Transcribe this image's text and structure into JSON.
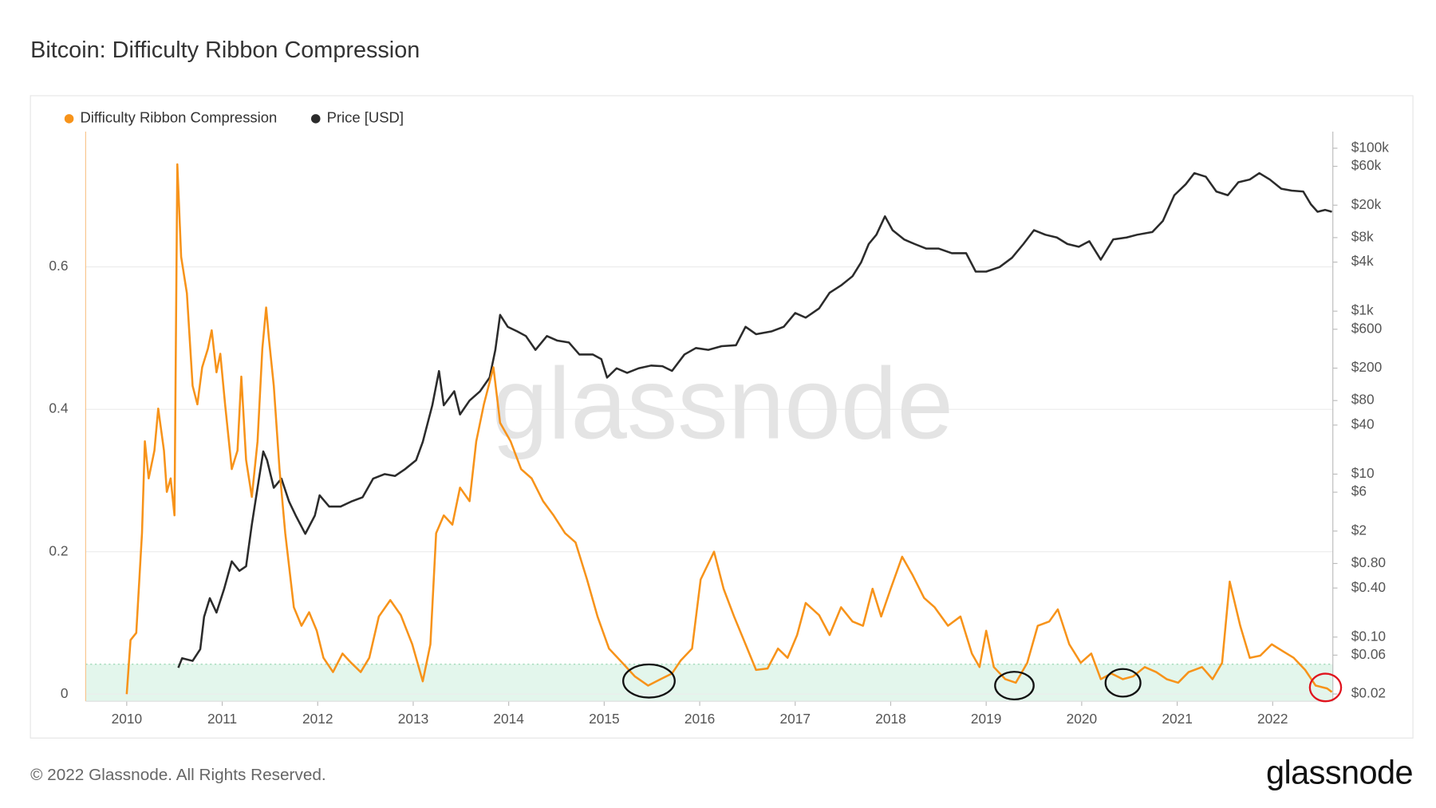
{
  "chart_data": {
    "type": "line",
    "title": "Bitcoin: Difficulty Ribbon Compression",
    "watermark": "glassnode",
    "xlim": [
      2009.57,
      2022.63
    ],
    "xticks": [
      2010,
      2011,
      2012,
      2013,
      2014,
      2015,
      2016,
      2017,
      2018,
      2019,
      2020,
      2021,
      2022
    ],
    "ylim": [
      -0.01,
      0.79
    ],
    "yticks": [
      0,
      0.2,
      0.4,
      0.6
    ],
    "y2lim": [
      0.0163,
      160000
    ],
    "y2log": true,
    "y2ticks": [
      {
        "value": 100000,
        "label": "$100k"
      },
      {
        "value": 60000,
        "label": "$60k"
      },
      {
        "value": 20000,
        "label": "$20k"
      },
      {
        "value": 8000,
        "label": "$8k"
      },
      {
        "value": 4000,
        "label": "$4k"
      },
      {
        "value": 1000,
        "label": "$1k"
      },
      {
        "value": 600,
        "label": "$600"
      },
      {
        "value": 200,
        "label": "$200"
      },
      {
        "value": 80,
        "label": "$80"
      },
      {
        "value": 40,
        "label": "$40"
      },
      {
        "value": 10,
        "label": "$10"
      },
      {
        "value": 6,
        "label": "$6"
      },
      {
        "value": 2,
        "label": "$2"
      },
      {
        "value": 0.8,
        "label": "$0.80"
      },
      {
        "value": 0.4,
        "label": "$0.40"
      },
      {
        "value": 0.1,
        "label": "$0.10"
      },
      {
        "value": 0.06,
        "label": "$0.06"
      },
      {
        "value": 0.02,
        "label": "$0.02"
      }
    ],
    "grid": true,
    "band": {
      "from": -0.01,
      "to": 0.042,
      "color": "#e3f6ec"
    },
    "legend": "top-left",
    "series": [
      {
        "name": "Difficulty Ribbon Compression",
        "color": "#f7931a",
        "x": [
          2010.0,
          2010.04,
          2010.1,
          2010.16,
          2010.19,
          2010.23,
          2010.29,
          2010.33,
          2010.39,
          2010.42,
          2010.46,
          2010.5,
          2010.53,
          2010.57,
          2010.63,
          2010.69,
          2010.74,
          2010.79,
          2010.85,
          2010.89,
          2010.94,
          2010.98,
          2011.03,
          2011.1,
          2011.16,
          2011.2,
          2011.25,
          2011.31,
          2011.37,
          2011.42,
          2011.46,
          2011.49,
          2011.54,
          2011.6,
          2011.66,
          2011.75,
          2011.83,
          2011.91,
          2011.99,
          2012.06,
          2012.16,
          2012.26,
          2012.35,
          2012.45,
          2012.54,
          2012.64,
          2012.76,
          2012.87,
          2012.99,
          2013.1,
          2013.18,
          2013.24,
          2013.32,
          2013.41,
          2013.49,
          2013.59,
          2013.66,
          2013.74,
          2013.84,
          2013.91,
          2014.02,
          2014.13,
          2014.24,
          2014.36,
          2014.47,
          2014.59,
          2014.7,
          2014.82,
          2014.93,
          2015.05,
          2015.19,
          2015.32,
          2015.46,
          2015.59,
          2015.71,
          2015.8,
          2015.92,
          2016.01,
          2016.15,
          2016.25,
          2016.36,
          2016.48,
          2016.59,
          2016.71,
          2016.82,
          2016.92,
          2017.02,
          2017.11,
          2017.25,
          2017.36,
          2017.48,
          2017.6,
          2017.71,
          2017.81,
          2017.9,
          2018.0,
          2018.12,
          2018.23,
          2018.35,
          2018.46,
          2018.6,
          2018.73,
          2018.85,
          2018.93,
          2019.0,
          2019.08,
          2019.2,
          2019.31,
          2019.43,
          2019.54,
          2019.66,
          2019.75,
          2019.87,
          2019.99,
          2020.1,
          2020.2,
          2020.31,
          2020.43,
          2020.54,
          2020.66,
          2020.78,
          2020.89,
          2021.01,
          2021.12,
          2021.26,
          2021.37,
          2021.47,
          2021.55,
          2021.66,
          2021.76,
          2021.87,
          2021.99,
          2022.11,
          2022.22,
          2022.34,
          2022.45,
          2022.57,
          2022.62
        ],
        "values": [
          0,
          0.076,
          0.086,
          0.226,
          0.355,
          0.303,
          0.342,
          0.401,
          0.342,
          0.284,
          0.303,
          0.251,
          0.744,
          0.614,
          0.563,
          0.433,
          0.407,
          0.459,
          0.485,
          0.511,
          0.452,
          0.478,
          0.407,
          0.316,
          0.342,
          0.446,
          0.329,
          0.277,
          0.355,
          0.485,
          0.543,
          0.498,
          0.433,
          0.316,
          0.226,
          0.122,
          0.096,
          0.115,
          0.089,
          0.051,
          0.031,
          0.057,
          0.044,
          0.031,
          0.051,
          0.109,
          0.132,
          0.111,
          0.07,
          0.018,
          0.07,
          0.226,
          0.251,
          0.238,
          0.29,
          0.271,
          0.355,
          0.407,
          0.459,
          0.381,
          0.355,
          0.316,
          0.303,
          0.271,
          0.251,
          0.226,
          0.213,
          0.161,
          0.109,
          0.064,
          0.044,
          0.025,
          0.012,
          0.021,
          0.029,
          0.047,
          0.064,
          0.161,
          0.2,
          0.148,
          0.109,
          0.07,
          0.034,
          0.036,
          0.064,
          0.051,
          0.083,
          0.128,
          0.111,
          0.083,
          0.122,
          0.102,
          0.096,
          0.148,
          0.109,
          0.148,
          0.193,
          0.167,
          0.135,
          0.122,
          0.096,
          0.109,
          0.057,
          0.038,
          0.089,
          0.038,
          0.021,
          0.016,
          0.044,
          0.096,
          0.102,
          0.119,
          0.07,
          0.044,
          0.057,
          0.021,
          0.029,
          0.021,
          0.025,
          0.038,
          0.031,
          0.021,
          0.016,
          0.031,
          0.038,
          0.021,
          0.044,
          0.158,
          0.096,
          0.051,
          0.054,
          0.07,
          0.06,
          0.051,
          0.034,
          0.012,
          0.008,
          0.003
        ]
      },
      {
        "name": "Price [USD]",
        "color": "#2b2b2b",
        "axis": "y2",
        "x": [
          2010.54,
          2010.58,
          2010.69,
          2010.77,
          2010.81,
          2010.87,
          2010.94,
          2011.02,
          2011.1,
          2011.18,
          2011.25,
          2011.31,
          2011.37,
          2011.43,
          2011.47,
          2011.54,
          2011.62,
          2011.7,
          2011.77,
          2011.87,
          2011.97,
          2012.02,
          2012.12,
          2012.24,
          2012.35,
          2012.47,
          2012.58,
          2012.7,
          2012.81,
          2012.91,
          2013.03,
          2013.1,
          2013.2,
          2013.27,
          2013.32,
          2013.43,
          2013.49,
          2013.59,
          2013.7,
          2013.8,
          2013.86,
          2013.91,
          2013.99,
          2014.09,
          2014.18,
          2014.28,
          2014.4,
          2014.51,
          2014.63,
          2014.74,
          2014.88,
          2014.97,
          2015.03,
          2015.13,
          2015.24,
          2015.36,
          2015.49,
          2015.61,
          2015.71,
          2015.84,
          2015.96,
          2016.09,
          2016.23,
          2016.38,
          2016.48,
          2016.59,
          2016.75,
          2016.88,
          2017.0,
          2017.11,
          2017.25,
          2017.36,
          2017.48,
          2017.6,
          2017.69,
          2017.77,
          2017.85,
          2017.94,
          2018.02,
          2018.14,
          2018.25,
          2018.37,
          2018.5,
          2018.64,
          2018.79,
          2018.89,
          2019.0,
          2019.14,
          2019.27,
          2019.39,
          2019.5,
          2019.62,
          2019.74,
          2019.85,
          2019.97,
          2020.08,
          2020.2,
          2020.33,
          2020.47,
          2020.58,
          2020.74,
          2020.85,
          2020.97,
          2021.09,
          2021.18,
          2021.3,
          2021.41,
          2021.53,
          2021.64,
          2021.76,
          2021.86,
          2021.97,
          2022.09,
          2022.2,
          2022.32,
          2022.4,
          2022.47,
          2022.55,
          2022.62
        ],
        "values": [
          0.042,
          0.055,
          0.051,
          0.071,
          0.177,
          0.3,
          0.2,
          0.39,
          0.85,
          0.65,
          0.74,
          2.4,
          6.8,
          19,
          14.8,
          6.8,
          8.8,
          4.6,
          3.1,
          1.85,
          3.1,
          5.5,
          4.0,
          4.0,
          4.6,
          5.2,
          8.8,
          10,
          9.5,
          11.4,
          14.8,
          24.8,
          70,
          184,
          70,
          104,
          54,
          80,
          104,
          153,
          335,
          900,
          643,
          564,
          495,
          335,
          495,
          435,
          413,
          294,
          294,
          258,
          153,
          199,
          175,
          199,
          215,
          211,
          185,
          294,
          353,
          335,
          372,
          382,
          643,
          522,
          564,
          643,
          949,
          833,
          1081,
          1683,
          2070,
          2685,
          3970,
          6680,
          8670,
          14600,
          9860,
          7600,
          6680,
          5870,
          5870,
          5150,
          5150,
          3060,
          3060,
          3480,
          4520,
          6680,
          9860,
          8670,
          8020,
          6680,
          6180,
          7220,
          4290,
          7600,
          8020,
          8670,
          9380,
          12800,
          26500,
          36200,
          49500,
          44700,
          29400,
          26500,
          38200,
          41300,
          49500,
          41300,
          31800,
          30200,
          29400,
          20500,
          16600,
          17500,
          16600
        ]
      }
    ]
  },
  "footer": {
    "copyright": "© 2022 Glassnode. All Rights Reserved.",
    "logo": "glassnode"
  }
}
